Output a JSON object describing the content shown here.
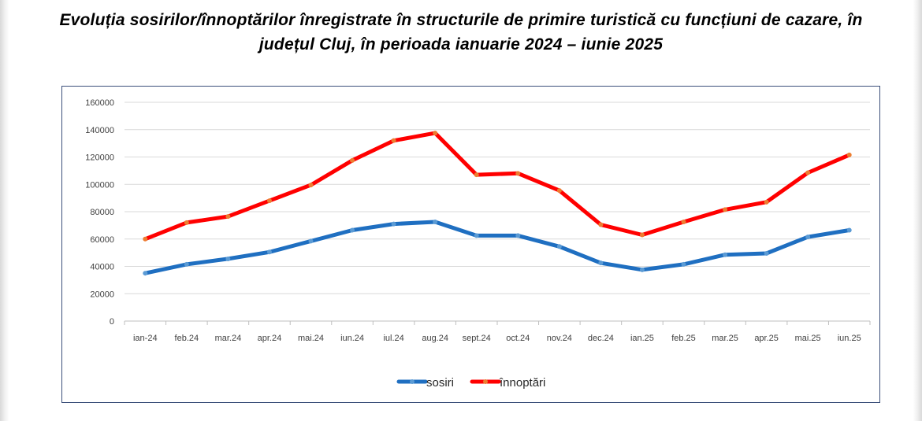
{
  "title": "Evoluția sosirilor/înnoptărilor înregistrate în structurile de primire turistică cu funcțiuni de cazare, în județul Cluj, în perioada ianuarie 2024 – iunie 2025",
  "chart_data": {
    "type": "line",
    "title": "Evoluția sosirilor/înnoptărilor înregistrate în structurile de primire turistică cu funcțiuni de cazare, în județul Cluj, în perioada ianuarie 2024 – iunie 2025",
    "xlabel": "",
    "ylabel": "",
    "ylim": [
      0,
      160000
    ],
    "yticks": [
      "160000",
      "140000",
      "120000",
      "100000",
      "80000",
      "60000",
      "40000",
      "20000",
      "0"
    ],
    "grid": true,
    "legend_position": "bottom",
    "categories": [
      "ian-24",
      "feb.24",
      "mar.24",
      "apr.24",
      "mai.24",
      "iun.24",
      "iul.24",
      "aug.24",
      "sept.24",
      "oct.24",
      "nov.24",
      "dec.24",
      "ian.25",
      "feb.25",
      "mar.25",
      "apr.25",
      "mai.25",
      "iun.25"
    ],
    "series": [
      {
        "name": "sosiri",
        "color": "#1f6fc1",
        "marker_color": "#5b9bd5",
        "values": [
          35000,
          41500,
          45500,
          50500,
          58500,
          66500,
          71000,
          72500,
          62500,
          62500,
          54500,
          42500,
          37500,
          41500,
          48500,
          49500,
          61500,
          66500
        ]
      },
      {
        "name": "înnoptări",
        "color": "#ff0000",
        "marker_color": "#ed7d31",
        "values": [
          60000,
          72000,
          76500,
          88000,
          99500,
          117500,
          132000,
          137500,
          107000,
          108000,
          95500,
          70500,
          63000,
          72500,
          81500,
          87000,
          108500,
          121500
        ]
      }
    ]
  }
}
